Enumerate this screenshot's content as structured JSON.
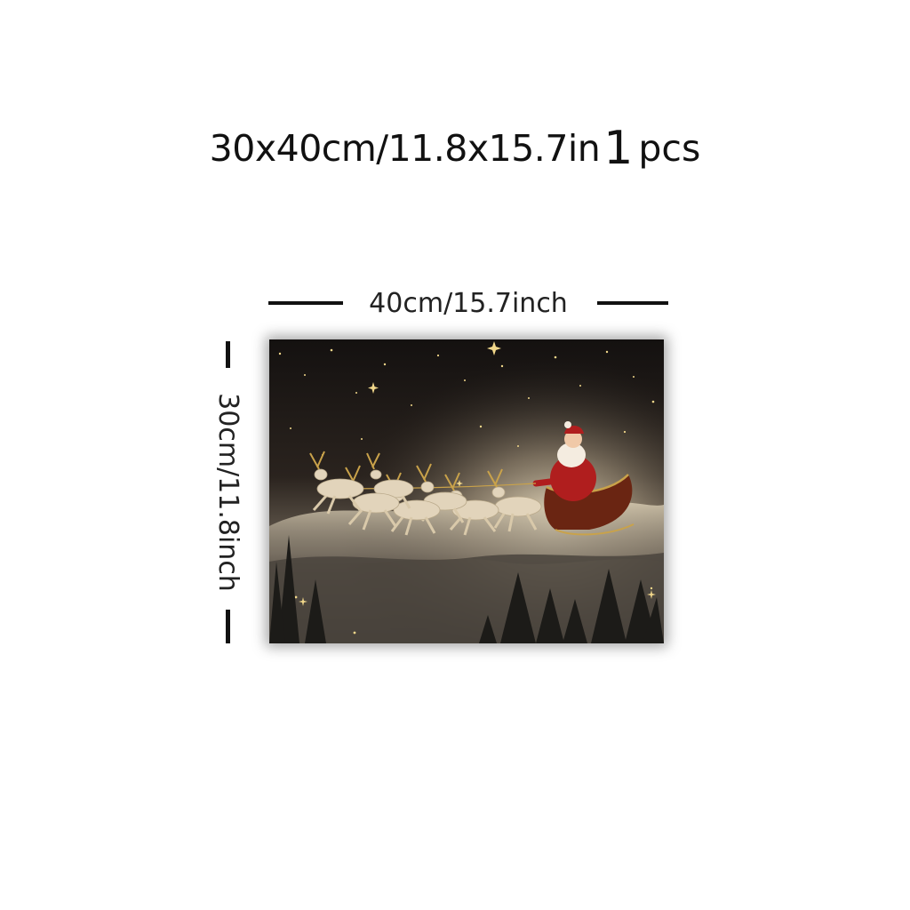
{
  "headline": {
    "size": "30x40cm/11.8x15.7in",
    "quantity": "1",
    "unit": "pcs"
  },
  "dimensions": {
    "width_label": "40cm/15.7inch",
    "height_label": "30cm/11.8inch"
  },
  "artwork": {
    "subject": "santa-sleigh-reindeer-painting"
  },
  "colors": {
    "text": "#111111",
    "sky": "#1c1714",
    "santa_red": "#b01e1e",
    "reindeer": "#e2d4bb",
    "gold": "#c9a24a"
  }
}
